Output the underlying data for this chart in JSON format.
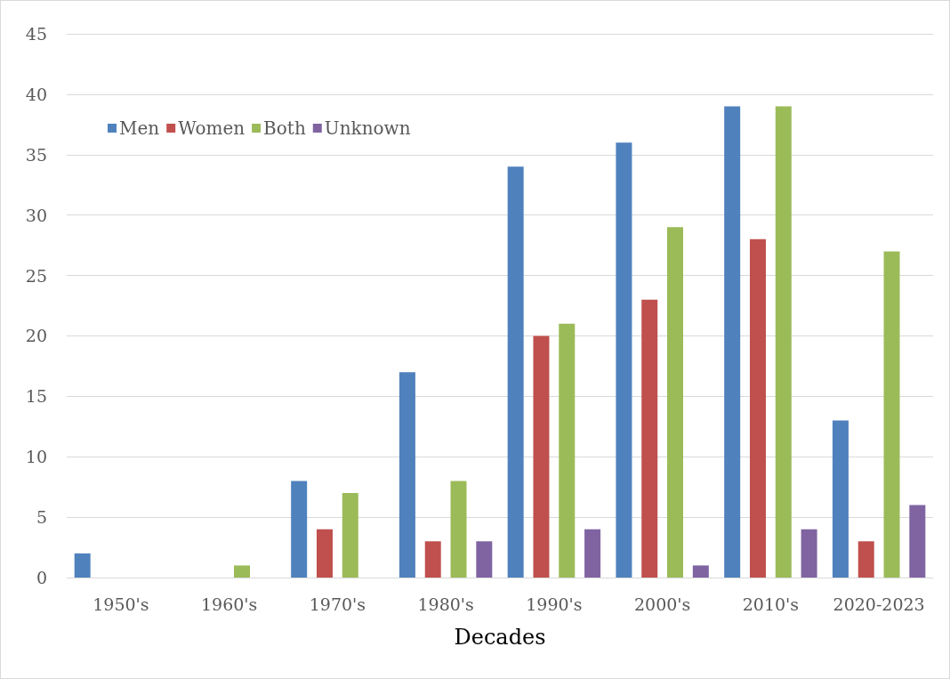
{
  "chart_data": {
    "type": "bar",
    "xlabel": "Decades",
    "categories": [
      "1950's",
      "1960's",
      "1970's",
      "1980's",
      "1990's",
      "2000's",
      "2010's",
      "2020-2023"
    ],
    "series": [
      {
        "name": "Men",
        "color": "#4f81bd",
        "values": [
          2,
          0,
          8,
          17,
          34,
          36,
          39,
          13
        ]
      },
      {
        "name": "Women",
        "color": "#c0504d",
        "values": [
          0,
          0,
          4,
          3,
          20,
          23,
          28,
          3
        ]
      },
      {
        "name": "Both",
        "color": "#9bbb59",
        "values": [
          0,
          1,
          7,
          8,
          21,
          29,
          39,
          27
        ]
      },
      {
        "name": "Unknown",
        "color": "#8064a2",
        "values": [
          0,
          0,
          0,
          3,
          4,
          1,
          4,
          6
        ]
      }
    ],
    "ylim": [
      0,
      45
    ],
    "yticks": [
      0,
      5,
      10,
      15,
      20,
      25,
      30,
      35,
      40,
      45
    ],
    "grid": "y",
    "legend": "top left"
  }
}
